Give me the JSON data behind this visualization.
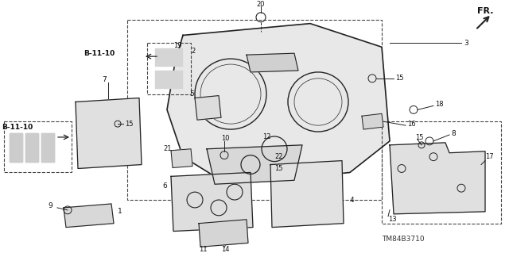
{
  "title": "",
  "bg_color": "#ffffff",
  "fig_width": 6.4,
  "fig_height": 3.19,
  "dpi": 100,
  "diagram_code": "TM84B3710",
  "fr_label": "FR.",
  "ref_label": "B-11-10",
  "part_numbers": [
    1,
    2,
    3,
    4,
    5,
    6,
    7,
    8,
    9,
    10,
    11,
    12,
    13,
    14,
    15,
    16,
    17,
    18,
    19,
    20,
    21,
    22
  ],
  "line_color": "#222222",
  "dashed_color": "#444444",
  "text_color": "#111111",
  "label_color": "#000000"
}
